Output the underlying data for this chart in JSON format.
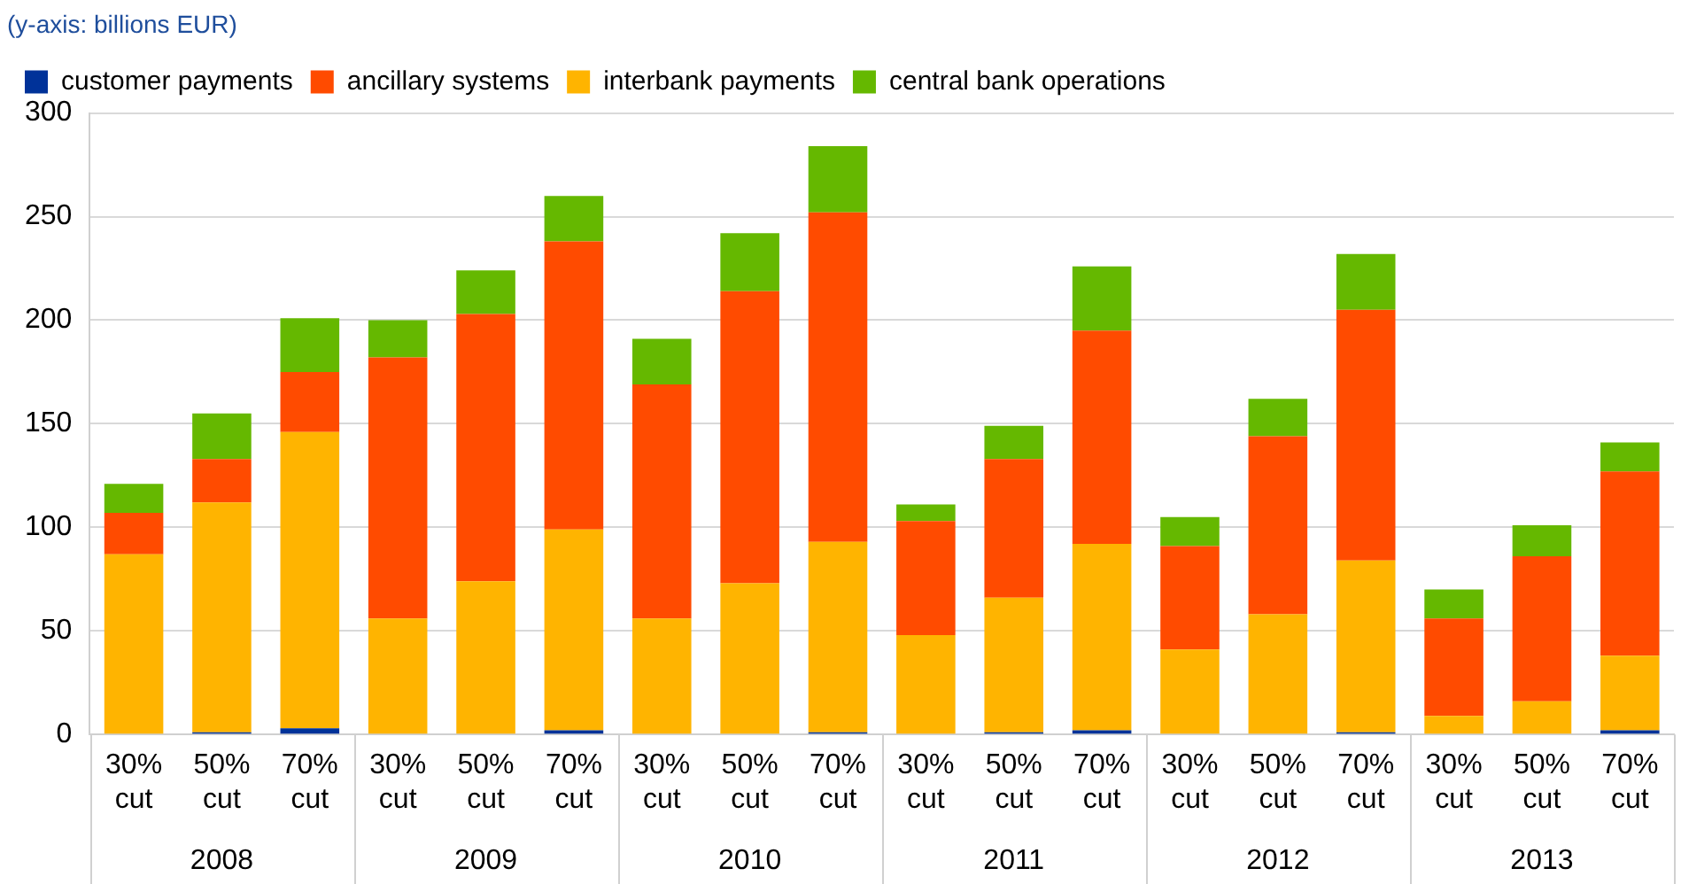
{
  "chart_data": {
    "type": "bar",
    "stacked": true,
    "title": "(y-axis: billions EUR)",
    "categories": [
      "30% cut",
      "50% cut",
      "70% cut",
      "30% cut",
      "50% cut",
      "70% cut",
      "30% cut",
      "50% cut",
      "70% cut",
      "30% cut",
      "50% cut",
      "70% cut",
      "30% cut",
      "50% cut",
      "70% cut",
      "30% cut",
      "50% cut",
      "70% cut"
    ],
    "series": [
      {
        "name": "customer payments",
        "color": "#003299",
        "values": [
          0,
          1,
          3,
          0,
          0,
          2,
          0,
          0,
          1,
          0,
          1,
          2,
          0,
          0,
          1,
          0,
          0,
          2
        ]
      },
      {
        "name": "interbank payments",
        "color": "#ffb400",
        "values": [
          87,
          111,
          143,
          56,
          74,
          97,
          56,
          73,
          92,
          48,
          65,
          90,
          41,
          58,
          83,
          9,
          16,
          36
        ]
      },
      {
        "name": "ancillary systems",
        "color": "#ff4b00",
        "values": [
          20,
          21,
          29,
          126,
          129,
          139,
          113,
          141,
          159,
          55,
          67,
          103,
          50,
          86,
          121,
          47,
          70,
          89
        ]
      },
      {
        "name": "central bank operations",
        "color": "#65b800",
        "values": [
          14,
          22,
          26,
          18,
          21,
          22,
          22,
          28,
          32,
          8,
          16,
          31,
          14,
          18,
          27,
          14,
          15,
          14
        ]
      }
    ],
    "ylim": [
      0,
      300
    ],
    "yticks": [
      0,
      50,
      100,
      150,
      200,
      250,
      300
    ],
    "grid": "y",
    "legend": "top left",
    "annotations": [
      "2008",
      "2009",
      "2010",
      "2011",
      "2012",
      "2013"
    ]
  }
}
